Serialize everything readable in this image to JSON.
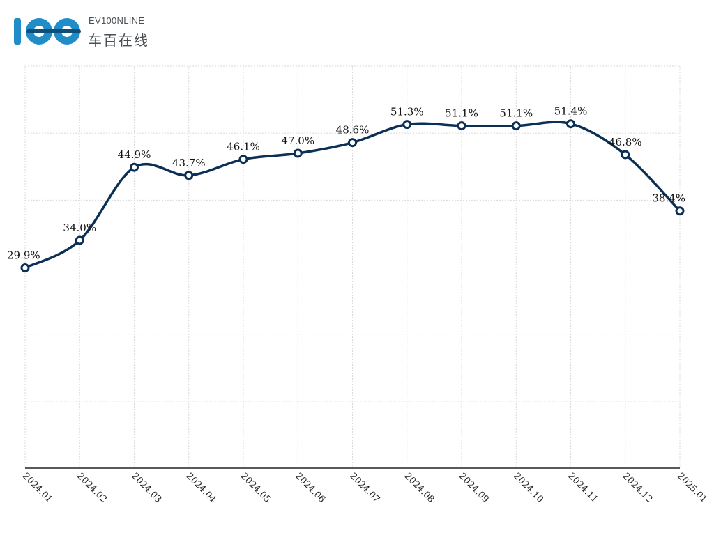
{
  "logo": {
    "text_en": "EV100NLINE",
    "text_cn": "车百在线",
    "colors": {
      "primary": "#1f8ec8",
      "secondary": "#0c4f7a",
      "text": "#4a4f55"
    }
  },
  "chart_data": {
    "type": "line",
    "title": "",
    "xlabel": "",
    "ylabel": "",
    "categories": [
      "2024.01",
      "2024.02",
      "2024.03",
      "2024.04",
      "2024.05",
      "2024.06",
      "2024.07",
      "2024.08",
      "2024.09",
      "2024.10",
      "2024.11",
      "2024.12",
      "2025.01"
    ],
    "series": [
      {
        "name": "",
        "values": [
          29.9,
          34.0,
          44.9,
          43.7,
          46.1,
          47.0,
          48.6,
          51.3,
          51.1,
          51.1,
          51.4,
          46.8,
          38.4
        ],
        "labels": [
          "29.9%",
          "34.0%",
          "44.9%",
          "43.7%",
          "46.1%",
          "47.0%",
          "48.6%",
          "51.3%",
          "51.1%",
          "51.1%",
          "51.4%",
          "46.8%",
          "38.4%"
        ],
        "color": "#0b2f55"
      }
    ],
    "ylim": [
      0,
      60
    ],
    "grid": true,
    "legend": "none"
  }
}
